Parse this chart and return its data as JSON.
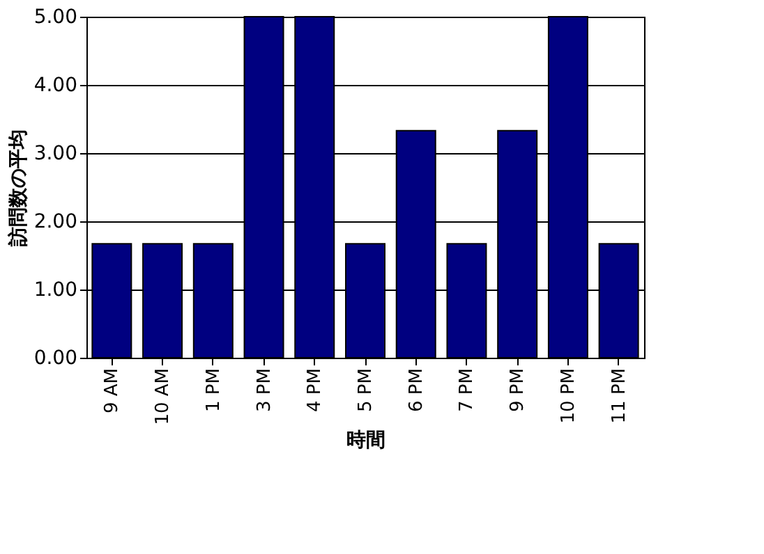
{
  "chart_data": {
    "type": "bar",
    "xlabel": "時間",
    "ylabel": "訪問数の平均",
    "categories": [
      "9 AM",
      "10 AM",
      "1 PM",
      "3 PM",
      "4 PM",
      "5 PM",
      "6 PM",
      "7 PM",
      "9 PM",
      "10 PM",
      "11 PM"
    ],
    "values": [
      1.67,
      1.67,
      1.67,
      5.0,
      5.0,
      1.67,
      3.33,
      1.67,
      3.33,
      5.0,
      1.67
    ],
    "color": "#000080",
    "ylim": [
      0,
      5
    ],
    "yticks": [
      {
        "value": 0,
        "label": "0.00"
      },
      {
        "value": 1,
        "label": "1.00"
      },
      {
        "value": 2,
        "label": "2.00"
      },
      {
        "value": 3,
        "label": "3.00"
      },
      {
        "value": 4,
        "label": "4.00"
      },
      {
        "value": 5,
        "label": "5.00"
      }
    ],
    "grid": "y"
  }
}
